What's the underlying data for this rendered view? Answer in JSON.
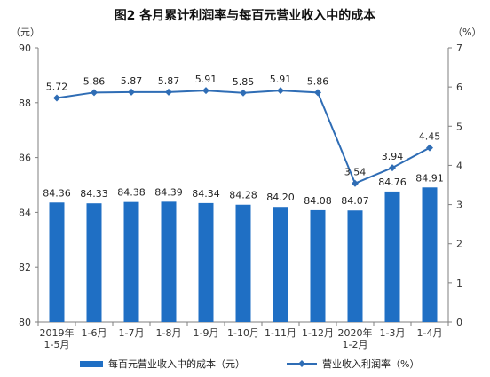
{
  "chart_data": {
    "type": "bar",
    "title": "图2  各月累计利润率与每百元营业收入中的成本",
    "left_unit": "（元）",
    "right_unit": "（%）",
    "categories": [
      [
        "2019年",
        "1-5月"
      ],
      [
        "1-6月"
      ],
      [
        "1-7月"
      ],
      [
        "1-8月"
      ],
      [
        "1-9月"
      ],
      [
        "1-10月"
      ],
      [
        "1-11月"
      ],
      [
        "1-12月"
      ],
      [
        "2020年",
        "1-2月"
      ],
      [
        "1-3月"
      ],
      [
        "1-4月"
      ]
    ],
    "series": [
      {
        "name": "每百元营业收入中的成本（元）",
        "type": "bar",
        "axis": "left",
        "values": [
          84.36,
          84.33,
          84.38,
          84.39,
          84.34,
          84.28,
          84.2,
          84.08,
          84.07,
          84.76,
          84.91
        ]
      },
      {
        "name": "营业收入利润率（%）",
        "type": "line",
        "axis": "right",
        "values": [
          5.72,
          5.86,
          5.87,
          5.87,
          5.91,
          5.85,
          5.91,
          5.86,
          3.54,
          3.94,
          4.45
        ]
      }
    ],
    "left_axis": {
      "min": 80,
      "max": 90,
      "ticks": [
        "80",
        "82",
        "84",
        "86",
        "88",
        "90"
      ]
    },
    "right_axis": {
      "min": 0,
      "max": 7,
      "ticks": [
        "0",
        "1",
        "2",
        "3",
        "4",
        "5",
        "6",
        "7"
      ]
    },
    "grid": false,
    "legend_position": "bottom",
    "colors": {
      "bar": "#1f6fc4",
      "line": "#2f6db5",
      "axis": "#7f7f7f"
    }
  }
}
